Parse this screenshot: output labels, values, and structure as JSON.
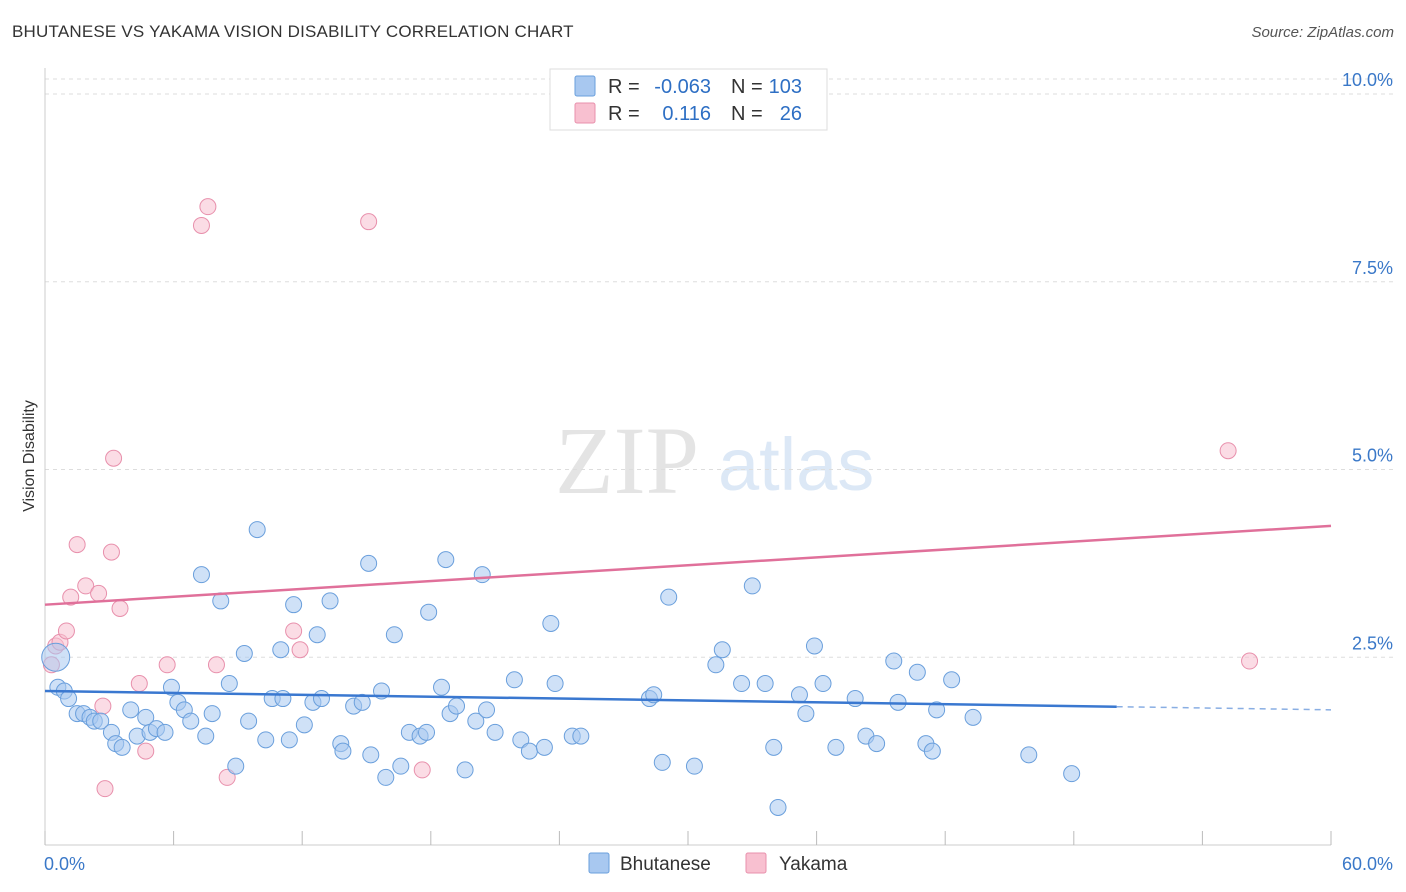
{
  "title": "BHUTANESE VS YAKAMA VISION DISABILITY CORRELATION CHART",
  "source": "Source: ZipAtlas.com",
  "watermark": {
    "zip": "ZIP",
    "atlas": "atlas"
  },
  "legend": {
    "r_label": "R =",
    "n_label": "N =",
    "series": [
      {
        "name": "Bhutanese",
        "r": "-0.063",
        "n": "103",
        "fill": "#a8c8f0",
        "stroke": "#6a9fdc"
      },
      {
        "name": "Yakama",
        "r": "0.116",
        "n": "26",
        "fill": "#f8c0d0",
        "stroke": "#e890ac"
      }
    ]
  },
  "chart_data": {
    "type": "scatter",
    "title": "BHUTANESE VS YAKAMA VISION DISABILITY CORRELATION CHART",
    "xlabel": "",
    "ylabel": "Vision Disability",
    "xlim": [
      0,
      60
    ],
    "ylim": [
      0,
      10.2
    ],
    "x_tick_labels": [
      "0.0%",
      "60.0%"
    ],
    "y_ticks": [
      2.5,
      5.0,
      7.5,
      10.0
    ],
    "y_tick_labels": [
      "2.5%",
      "5.0%",
      "7.5%",
      "10.0%"
    ],
    "grid": true,
    "colors": {
      "bhutanese": "#3a78d0",
      "yakama": "#e0709a",
      "axis_label": "#3a78c8"
    },
    "series": [
      {
        "name": "Bhutanese",
        "points": [
          [
            0.5,
            2.5
          ],
          [
            0.6,
            2.1
          ],
          [
            0.9,
            2.05
          ],
          [
            1.1,
            1.95
          ],
          [
            1.5,
            1.75
          ],
          [
            1.8,
            1.75
          ],
          [
            2.1,
            1.7
          ],
          [
            2.3,
            1.65
          ],
          [
            2.6,
            1.65
          ],
          [
            3.1,
            1.5
          ],
          [
            3.3,
            1.35
          ],
          [
            3.6,
            1.3
          ],
          [
            4.0,
            1.8
          ],
          [
            4.3,
            1.45
          ],
          [
            4.7,
            1.7
          ],
          [
            4.9,
            1.5
          ],
          [
            5.2,
            1.55
          ],
          [
            5.6,
            1.5
          ],
          [
            5.9,
            2.1
          ],
          [
            6.2,
            1.9
          ],
          [
            6.5,
            1.8
          ],
          [
            6.8,
            1.65
          ],
          [
            7.3,
            3.6
          ],
          [
            7.5,
            1.45
          ],
          [
            7.8,
            1.75
          ],
          [
            8.2,
            3.25
          ],
          [
            8.6,
            2.15
          ],
          [
            8.9,
            1.05
          ],
          [
            9.3,
            2.55
          ],
          [
            9.5,
            1.65
          ],
          [
            9.9,
            4.2
          ],
          [
            10.3,
            1.4
          ],
          [
            10.6,
            1.95
          ],
          [
            11.0,
            2.6
          ],
          [
            11.1,
            1.95
          ],
          [
            11.4,
            1.4
          ],
          [
            11.6,
            3.2
          ],
          [
            12.1,
            1.6
          ],
          [
            12.5,
            1.9
          ],
          [
            12.7,
            2.8
          ],
          [
            12.9,
            1.95
          ],
          [
            13.3,
            3.25
          ],
          [
            13.8,
            1.35
          ],
          [
            13.9,
            1.25
          ],
          [
            14.4,
            1.85
          ],
          [
            14.8,
            1.9
          ],
          [
            15.1,
            3.75
          ],
          [
            15.2,
            1.2
          ],
          [
            15.7,
            2.05
          ],
          [
            15.9,
            0.9
          ],
          [
            16.3,
            2.8
          ],
          [
            16.6,
            1.05
          ],
          [
            17.0,
            1.5
          ],
          [
            17.5,
            1.45
          ],
          [
            17.8,
            1.5
          ],
          [
            17.9,
            3.1
          ],
          [
            18.5,
            2.1
          ],
          [
            18.7,
            3.8
          ],
          [
            18.9,
            1.75
          ],
          [
            19.2,
            1.85
          ],
          [
            19.6,
            1.0
          ],
          [
            20.1,
            1.65
          ],
          [
            20.4,
            3.6
          ],
          [
            20.6,
            1.8
          ],
          [
            21.0,
            1.5
          ],
          [
            21.9,
            2.2
          ],
          [
            22.2,
            1.4
          ],
          [
            22.6,
            1.25
          ],
          [
            23.3,
            1.3
          ],
          [
            23.6,
            2.95
          ],
          [
            23.8,
            2.15
          ],
          [
            24.6,
            1.45
          ],
          [
            25.0,
            1.45
          ],
          [
            28.2,
            1.95
          ],
          [
            28.4,
            2.0
          ],
          [
            28.8,
            1.1
          ],
          [
            29.1,
            3.3
          ],
          [
            30.3,
            1.05
          ],
          [
            31.3,
            2.4
          ],
          [
            31.6,
            2.6
          ],
          [
            32.5,
            2.15
          ],
          [
            33.0,
            3.45
          ],
          [
            33.6,
            2.15
          ],
          [
            34.0,
            1.3
          ],
          [
            34.2,
            0.5
          ],
          [
            35.2,
            2.0
          ],
          [
            35.5,
            1.75
          ],
          [
            35.9,
            2.65
          ],
          [
            36.3,
            2.15
          ],
          [
            36.9,
            1.3
          ],
          [
            37.8,
            1.95
          ],
          [
            38.3,
            1.45
          ],
          [
            38.8,
            1.35
          ],
          [
            39.6,
            2.45
          ],
          [
            39.8,
            1.9
          ],
          [
            40.7,
            2.3
          ],
          [
            41.1,
            1.35
          ],
          [
            41.4,
            1.25
          ],
          [
            41.6,
            1.8
          ],
          [
            42.3,
            2.2
          ],
          [
            43.3,
            1.7
          ],
          [
            45.9,
            1.2
          ],
          [
            47.9,
            0.95
          ]
        ]
      },
      {
        "name": "Yakama",
        "points": [
          [
            0.3,
            2.4
          ],
          [
            0.5,
            2.65
          ],
          [
            0.7,
            2.7
          ],
          [
            1.0,
            2.85
          ],
          [
            1.2,
            3.3
          ],
          [
            1.5,
            4.0
          ],
          [
            1.9,
            3.45
          ],
          [
            2.5,
            3.35
          ],
          [
            2.7,
            1.85
          ],
          [
            2.8,
            0.75
          ],
          [
            3.1,
            3.9
          ],
          [
            3.2,
            5.15
          ],
          [
            3.5,
            3.15
          ],
          [
            4.4,
            2.15
          ],
          [
            4.7,
            1.25
          ],
          [
            5.7,
            2.4
          ],
          [
            7.3,
            8.25
          ],
          [
            7.6,
            8.5
          ],
          [
            8.0,
            2.4
          ],
          [
            8.5,
            0.9
          ],
          [
            11.6,
            2.85
          ],
          [
            11.9,
            2.6
          ],
          [
            15.1,
            8.3
          ],
          [
            17.6,
            1.0
          ],
          [
            55.2,
            5.25
          ],
          [
            56.2,
            2.45
          ]
        ]
      }
    ],
    "trend_lines": [
      {
        "series": "Bhutanese",
        "x": [
          0,
          60
        ],
        "y": [
          2.05,
          1.8
        ],
        "solid_until_x": 50
      },
      {
        "series": "Yakama",
        "x": [
          0,
          60
        ],
        "y": [
          3.2,
          4.25
        ]
      }
    ]
  }
}
